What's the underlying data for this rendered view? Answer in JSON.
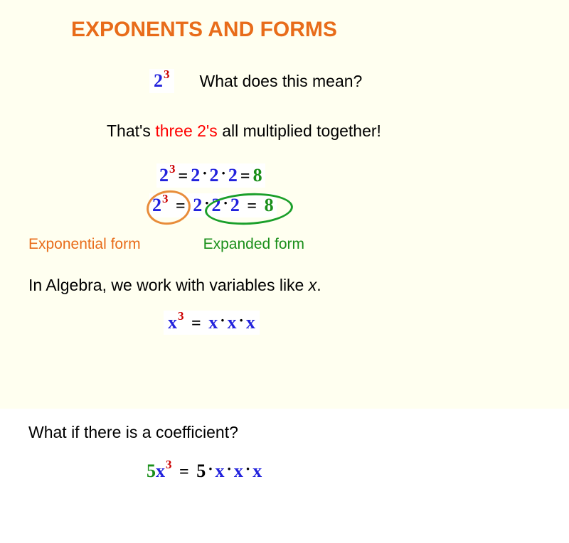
{
  "colors": {
    "page_bg_upper": "#fffff0",
    "page_bg_lower": "#ffffff",
    "title": "#e86c1a",
    "body_text": "#000000",
    "highlight_red": "#ff0000",
    "exp_form_label": "#e86c1a",
    "expand_form_label": "#1a8f1a",
    "math_base": "#2222dd",
    "math_exponent": "#cc0000",
    "math_result": "#1a8f1a",
    "math_operator": "#000000",
    "circle_exponential": "#e88c3a",
    "circle_expanded": "#1a9f2a",
    "coefficient_5": "#1a8f1a"
  },
  "typography": {
    "title_fontsize": 30,
    "title_weight": "bold",
    "body_fontsize": 23,
    "label_fontsize": 21,
    "math_font": "Comic Sans / handwritten",
    "math_base_fontsize": 26,
    "math_exp_fontsize": 17
  },
  "title": "EXPONENTS AND FORMS",
  "intro": {
    "expr": {
      "base": "2",
      "exponent": "3"
    },
    "question": "What does this mean?"
  },
  "explain": {
    "prefix": "That's ",
    "highlight": "three 2's",
    "suffix": " all multiplied together!"
  },
  "eq_expansion": {
    "base": "2",
    "exponent": "3",
    "eq": "=",
    "factors": [
      "2",
      "2",
      "2"
    ],
    "dot": "·",
    "result": "8"
  },
  "eq_circled": {
    "base": "2",
    "exponent": "3",
    "eq": "=",
    "factors": [
      "2",
      "2",
      "2"
    ],
    "dot": "·",
    "result": "8",
    "circle_exponential_color": "#e88c3a",
    "circle_expanded_color": "#1a9f2a"
  },
  "labels": {
    "exponential": "Exponential form",
    "expanded": "Expanded form"
  },
  "algebra": {
    "text_prefix": "In Algebra, we work with variables like ",
    "var": "x",
    "text_suffix": "."
  },
  "eq_var": {
    "base": "x",
    "exponent": "3",
    "eq": "=",
    "factors": [
      "x",
      "x",
      "x"
    ],
    "dot": "·"
  },
  "coefficient": {
    "question": "What if there is a coefficient?"
  },
  "eq_coef": {
    "coef": "5",
    "base": "x",
    "exponent": "3",
    "eq": "=",
    "lead": "5",
    "factors": [
      "x",
      "x",
      "x"
    ],
    "dot": "·"
  }
}
